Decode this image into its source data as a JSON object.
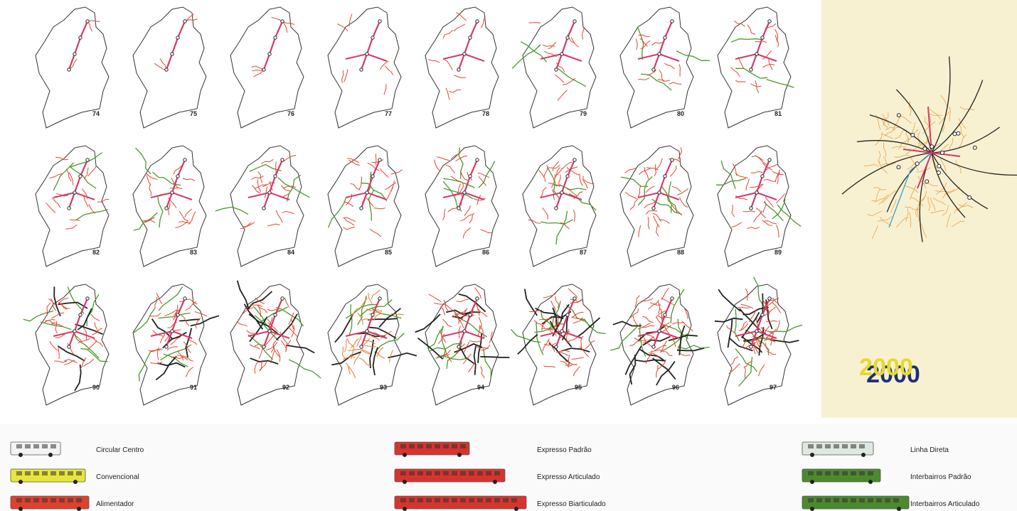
{
  "maps": [
    "74",
    "75",
    "76",
    "77",
    "78",
    "79",
    "80",
    "81",
    "82",
    "83",
    "84",
    "85",
    "86",
    "87",
    "88",
    "89",
    "90",
    "91",
    "92",
    "93",
    "94",
    "95",
    "96",
    "97"
  ],
  "highlight": {
    "label": "2000"
  },
  "legend": [
    {
      "label": "Circular Centro",
      "color": "#f4f4f4"
    },
    {
      "label": "Convencional",
      "color": "#e6e63a"
    },
    {
      "label": "Alimentador",
      "color": "#e0402e"
    },
    {
      "label": "Expresso Padrão",
      "color": "#d8342e"
    },
    {
      "label": "Expresso Articulado",
      "color": "#d8342e"
    },
    {
      "label": "Expresso Biarticulado",
      "color": "#d8342e"
    },
    {
      "label": "Linha Direta",
      "color": "#dfe8e0"
    },
    {
      "label": "Interbairros Padrão",
      "color": "#4c8a2e"
    },
    {
      "label": "Interbairros Articulado",
      "color": "#4c8a2e"
    }
  ]
}
